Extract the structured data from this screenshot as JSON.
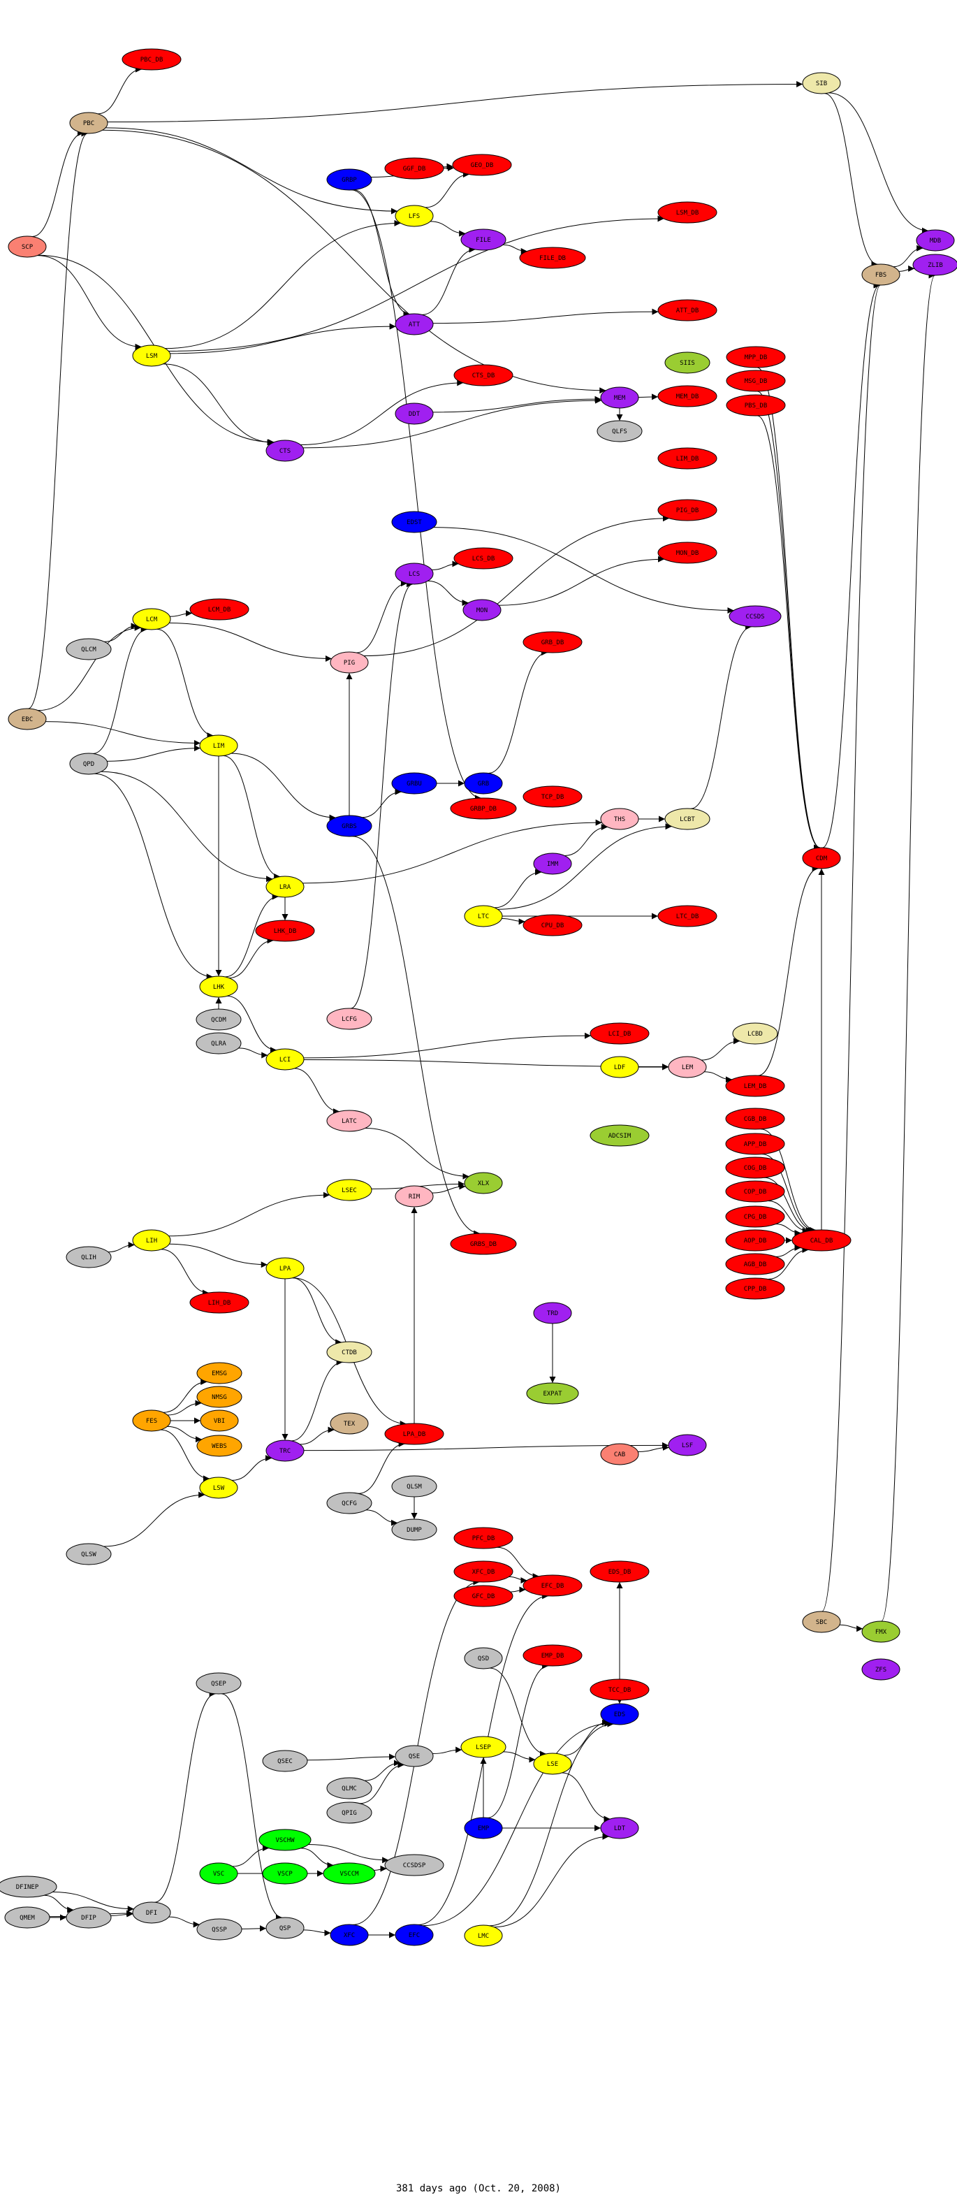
{
  "colors": {
    "red": "#ff0000",
    "purple": "#a020f0",
    "yellow": "#ffff00",
    "blue": "#0000ff",
    "gray": "#c0c0c0",
    "tan": "#d2b48c",
    "salmon": "#fa8072",
    "khaki": "#eee8aa",
    "pink": "#ffb6c1",
    "yellowgreen": "#9acd32",
    "orange": "#ffa500",
    "green": "#00ff00"
  },
  "nodes": [
    {
      "label": "PBC_DB",
      "color": "red"
    },
    {
      "label": "PBC",
      "color": "tan"
    },
    {
      "label": "SCP",
      "color": "salmon"
    },
    {
      "label": "GRBP",
      "color": "blue"
    },
    {
      "label": "GGF_DB",
      "color": "red"
    },
    {
      "label": "GEO_DB",
      "color": "red"
    },
    {
      "label": "LFS",
      "color": "yellow"
    },
    {
      "label": "FILE",
      "color": "purple"
    },
    {
      "label": "FILE_DB",
      "color": "red"
    },
    {
      "label": "LSM_DB",
      "color": "red"
    },
    {
      "label": "SIB",
      "color": "khaki"
    },
    {
      "label": "MDB",
      "color": "purple"
    },
    {
      "label": "ZLIB",
      "color": "purple"
    },
    {
      "label": "FBS",
      "color": "tan"
    },
    {
      "label": "ATT",
      "color": "purple"
    },
    {
      "label": "ATT_DB",
      "color": "red"
    },
    {
      "label": "SIIS",
      "color": "yellowgreen"
    },
    {
      "label": "MPP_DB",
      "color": "red"
    },
    {
      "label": "MSG_DB",
      "color": "red"
    },
    {
      "label": "PBS_DB",
      "color": "red"
    },
    {
      "label": "MEM",
      "color": "purple"
    },
    {
      "label": "MEM_DB",
      "color": "red"
    },
    {
      "label": "QLFS",
      "color": "gray"
    },
    {
      "label": "LIM_DB",
      "color": "red"
    },
    {
      "label": "LSM",
      "color": "yellow"
    },
    {
      "label": "CTS_DB",
      "color": "red"
    },
    {
      "label": "DDT",
      "color": "purple"
    },
    {
      "label": "CTS",
      "color": "purple"
    },
    {
      "label": "EDST",
      "color": "blue"
    },
    {
      "label": "PIG_DB",
      "color": "red"
    },
    {
      "label": "MON_DB",
      "color": "red"
    },
    {
      "label": "LCS_DB",
      "color": "red"
    },
    {
      "label": "LCS",
      "color": "purple"
    },
    {
      "label": "LCM",
      "color": "yellow"
    },
    {
      "label": "LCM_DB",
      "color": "red"
    },
    {
      "label": "MON",
      "color": "purple"
    },
    {
      "label": "QLCM",
      "color": "gray"
    },
    {
      "label": "PIG",
      "color": "pink"
    },
    {
      "label": "EBC",
      "color": "tan"
    },
    {
      "label": "LIM",
      "color": "yellow"
    },
    {
      "label": "QPD",
      "color": "gray"
    },
    {
      "label": "GRBU",
      "color": "blue"
    },
    {
      "label": "GRB",
      "color": "blue"
    },
    {
      "label": "GRBP_DB",
      "color": "red"
    },
    {
      "label": "GRBS",
      "color": "blue"
    },
    {
      "label": "LRA",
      "color": "yellow"
    },
    {
      "label": "LTC",
      "color": "yellow"
    },
    {
      "label": "LHK_DB",
      "color": "red"
    },
    {
      "label": "LHK",
      "color": "yellow"
    },
    {
      "label": "QCDM",
      "color": "gray"
    },
    {
      "label": "LCFG",
      "color": "pink"
    },
    {
      "label": "QLRA",
      "color": "gray"
    },
    {
      "label": "LCI",
      "color": "yellow"
    },
    {
      "label": "GRB_DB",
      "color": "red"
    },
    {
      "label": "CCSDS",
      "color": "purple"
    },
    {
      "label": "TCP_DB",
      "color": "red"
    },
    {
      "label": "THS",
      "color": "pink"
    },
    {
      "label": "LCBT",
      "color": "khaki"
    },
    {
      "label": "IMM",
      "color": "purple"
    },
    {
      "label": "CDM",
      "color": "red"
    },
    {
      "label": "CPU_DB",
      "color": "red"
    },
    {
      "label": "LTC_DB",
      "color": "red"
    },
    {
      "label": "LCI_DB",
      "color": "red"
    },
    {
      "label": "LCBD",
      "color": "khaki"
    },
    {
      "label": "LDF",
      "color": "yellow"
    },
    {
      "label": "LEM",
      "color": "pink"
    },
    {
      "label": "LEM_DB",
      "color": "red"
    },
    {
      "label": "CGB_DB",
      "color": "red"
    },
    {
      "label": "APP_DB",
      "color": "red"
    },
    {
      "label": "COG_DB",
      "color": "red"
    },
    {
      "label": "COP_DB",
      "color": "red"
    },
    {
      "label": "CPG_DB",
      "color": "red"
    },
    {
      "label": "AOP_DB",
      "color": "red"
    },
    {
      "label": "AGB_DB",
      "color": "red"
    },
    {
      "label": "CPP_DB",
      "color": "red"
    },
    {
      "label": "CAL_DB",
      "color": "red"
    },
    {
      "label": "ADCSIM",
      "color": "yellowgreen"
    },
    {
      "label": "XLX",
      "color": "yellowgreen"
    },
    {
      "label": "GRBS_DB",
      "color": "red"
    },
    {
      "label": "TRD",
      "color": "purple"
    },
    {
      "label": "EXPAT",
      "color": "yellowgreen"
    },
    {
      "label": "LSF",
      "color": "purple"
    },
    {
      "label": "CAB",
      "color": "salmon"
    },
    {
      "label": "PFC_DB",
      "color": "red"
    },
    {
      "label": "XFC_DB",
      "color": "red"
    },
    {
      "label": "GFC_DB",
      "color": "red"
    },
    {
      "label": "EFC_DB",
      "color": "red"
    },
    {
      "label": "EDS_DB",
      "color": "red"
    },
    {
      "label": "SBC",
      "color": "tan"
    },
    {
      "label": "FMX",
      "color": "yellowgreen"
    },
    {
      "label": "LATC",
      "color": "pink"
    },
    {
      "label": "LSEC",
      "color": "yellow"
    },
    {
      "label": "RIM",
      "color": "pink"
    },
    {
      "label": "LIH",
      "color": "yellow"
    },
    {
      "label": "QLIH",
      "color": "gray"
    },
    {
      "label": "LPA",
      "color": "yellow"
    },
    {
      "label": "LIH_DB",
      "color": "red"
    },
    {
      "label": "CTDB",
      "color": "khaki"
    },
    {
      "label": "EMSG",
      "color": "orange"
    },
    {
      "label": "NMSG",
      "color": "orange"
    },
    {
      "label": "FES",
      "color": "orange"
    },
    {
      "label": "VBI",
      "color": "orange"
    },
    {
      "label": "WEBS",
      "color": "orange"
    },
    {
      "label": "TEX",
      "color": "tan"
    },
    {
      "label": "TRC",
      "color": "purple"
    },
    {
      "label": "LPA_DB",
      "color": "red"
    },
    {
      "label": "LSW",
      "color": "yellow"
    },
    {
      "label": "QLSM",
      "color": "gray"
    },
    {
      "label": "QCFG",
      "color": "gray"
    },
    {
      "label": "DUMP",
      "color": "gray"
    },
    {
      "label": "QLSW",
      "color": "gray"
    },
    {
      "label": "QSD",
      "color": "gray"
    },
    {
      "label": "QSEP",
      "color": "gray"
    },
    {
      "label": "EMP_DB",
      "color": "red"
    },
    {
      "label": "TCC_DB",
      "color": "red"
    },
    {
      "label": "EDS",
      "color": "blue"
    },
    {
      "label": "LSEP",
      "color": "yellow"
    },
    {
      "label": "QSE",
      "color": "gray"
    },
    {
      "label": "QSEC",
      "color": "gray"
    },
    {
      "label": "LSE",
      "color": "yellow"
    },
    {
      "label": "QLMC",
      "color": "gray"
    },
    {
      "label": "QPIG",
      "color": "gray"
    },
    {
      "label": "EMP",
      "color": "blue"
    },
    {
      "label": "LDT",
      "color": "purple"
    },
    {
      "label": "VSCHW",
      "color": "green"
    },
    {
      "label": "CCSDSP",
      "color": "gray"
    },
    {
      "label": "VSC",
      "color": "green"
    },
    {
      "label": "VSCP",
      "color": "green"
    },
    {
      "label": "VSCCM",
      "color": "green"
    },
    {
      "label": "DFINEP",
      "color": "gray"
    },
    {
      "label": "QMEM",
      "color": "gray"
    },
    {
      "label": "DFIP",
      "color": "gray"
    },
    {
      "label": "DFI",
      "color": "gray"
    },
    {
      "label": "QSSP",
      "color": "gray"
    },
    {
      "label": "QSP",
      "color": "gray"
    },
    {
      "label": "XFC",
      "color": "blue"
    },
    {
      "label": "EFC",
      "color": "blue"
    },
    {
      "label": "LMC",
      "color": "yellow"
    },
    {
      "label": "ZFS",
      "color": "purple"
    }
  ],
  "edges": [
    [
      "PBC",
      "PBC_DB"
    ],
    [
      "SCP",
      "PBC"
    ],
    [
      "SCP",
      "LSM"
    ],
    [
      "SCP",
      "CTS"
    ],
    [
      "EBC",
      "PBC"
    ],
    [
      "EBC",
      "LCM"
    ],
    [
      "EBC",
      "LIM"
    ],
    [
      "PBC",
      "LFS"
    ],
    [
      "PBC",
      "MEM"
    ],
    [
      "PBC",
      "SIB"
    ],
    [
      "GGF_DB",
      "GEO_DB"
    ],
    [
      "GRBP",
      "GEO_DB"
    ],
    [
      "GRBP",
      "ATT"
    ],
    [
      "LFS",
      "FILE"
    ],
    [
      "LFS",
      "GEO_DB"
    ],
    [
      "FILE",
      "FILE_DB"
    ],
    [
      "ATT",
      "FILE"
    ],
    [
      "ATT",
      "ATT_DB"
    ],
    [
      "LSM",
      "ATT"
    ],
    [
      "LSM",
      "CTS"
    ],
    [
      "LSM",
      "LFS"
    ],
    [
      "LSM",
      "LSM_DB"
    ],
    [
      "MEM",
      "MEM_DB"
    ],
    [
      "MEM",
      "QLFS"
    ],
    [
      "DDT",
      "MEM"
    ],
    [
      "SIB",
      "MDB"
    ],
    [
      "SIB",
      "FBS"
    ],
    [
      "FBS",
      "MDB"
    ],
    [
      "FBS",
      "ZLIB"
    ],
    [
      "CDM",
      "FBS"
    ],
    [
      "SBC",
      "FBS"
    ],
    [
      "FMX",
      "ZLIB"
    ],
    [
      "SBC",
      "FMX"
    ],
    [
      "MPP_DB",
      "CDM"
    ],
    [
      "MSG_DB",
      "CDM"
    ],
    [
      "PBS_DB",
      "CDM"
    ],
    [
      "CAL_DB",
      "CDM"
    ],
    [
      "LEM_DB",
      "CDM"
    ],
    [
      "CTS",
      "CTS_DB"
    ],
    [
      "CTS",
      "MEM"
    ],
    [
      "LCM",
      "LCM_DB"
    ],
    [
      "LCM",
      "LIM"
    ],
    [
      "LCM",
      "PIG"
    ],
    [
      "QLCM",
      "LCM"
    ],
    [
      "QPD",
      "LIM"
    ],
    [
      "QPD",
      "LCM"
    ],
    [
      "QPD",
      "LRA"
    ],
    [
      "QPD",
      "LHK"
    ],
    [
      "LIM",
      "GRBS"
    ],
    [
      "LIM",
      "LRA"
    ],
    [
      "LIM",
      "LHK"
    ],
    [
      "GRBU",
      "GRB"
    ],
    [
      "GRBS",
      "GRBU"
    ],
    [
      "GRBS",
      "PIG"
    ],
    [
      "GRBS",
      "GRBS_DB"
    ],
    [
      "GRBP",
      "GRBP_DB"
    ],
    [
      "GRB",
      "GRB_DB"
    ],
    [
      "PIG",
      "LCS"
    ],
    [
      "PIG",
      "PIG_DB"
    ],
    [
      "LCS",
      "MON"
    ],
    [
      "LCS",
      "LCS_DB"
    ],
    [
      "MON",
      "MON_DB"
    ],
    [
      "LCFG",
      "LCS"
    ],
    [
      "THS",
      "LCBT"
    ],
    [
      "LCBT",
      "CCSDS"
    ],
    [
      "EDST",
      "CCSDS"
    ],
    [
      "IMM",
      "THS"
    ],
    [
      "LRA",
      "LHK_DB"
    ],
    [
      "LRA",
      "THS"
    ],
    [
      "LHK",
      "LRA"
    ],
    [
      "LHK",
      "LHK_DB"
    ],
    [
      "LHK",
      "LCI"
    ],
    [
      "QCDM",
      "LHK"
    ],
    [
      "QLRA",
      "LCI"
    ],
    [
      "LCI",
      "LCI_DB"
    ],
    [
      "LCI",
      "LATC"
    ],
    [
      "LCI",
      "LEM"
    ],
    [
      "LDF",
      "LEM"
    ],
    [
      "LEM",
      "LEM_DB"
    ],
    [
      "LEM",
      "LCBD"
    ],
    [
      "LTC",
      "LTC_DB"
    ],
    [
      "LTC",
      "CPU_DB"
    ],
    [
      "LTC",
      "IMM"
    ],
    [
      "LTC",
      "LCBT"
    ],
    [
      "CGB_DB",
      "CAL_DB"
    ],
    [
      "APP_DB",
      "CAL_DB"
    ],
    [
      "COG_DB",
      "CAL_DB"
    ],
    [
      "COP_DB",
      "CAL_DB"
    ],
    [
      "CPG_DB",
      "CAL_DB"
    ],
    [
      "AOP_DB",
      "CAL_DB"
    ],
    [
      "AGB_DB",
      "CAL_DB"
    ],
    [
      "CPP_DB",
      "CAL_DB"
    ],
    [
      "LATC",
      "XLX"
    ],
    [
      "RIM",
      "XLX"
    ],
    [
      "LSEC",
      "XLX"
    ],
    [
      "LIH",
      "LIH_DB"
    ],
    [
      "LIH",
      "LPA"
    ],
    [
      "LIH",
      "LSEC"
    ],
    [
      "QLIH",
      "LIH"
    ],
    [
      "LPA",
      "CTDB"
    ],
    [
      "LPA",
      "TRC"
    ],
    [
      "LPA",
      "LPA_DB"
    ],
    [
      "FES",
      "EMSG"
    ],
    [
      "FES",
      "NMSG"
    ],
    [
      "FES",
      "VBI"
    ],
    [
      "FES",
      "WEBS"
    ],
    [
      "FES",
      "LSW"
    ],
    [
      "TRC",
      "TEX"
    ],
    [
      "TRC",
      "CTDB"
    ],
    [
      "TRC",
      "LSF"
    ],
    [
      "LSW",
      "TRC"
    ],
    [
      "QLSW",
      "LSW"
    ],
    [
      "QCFG",
      "DUMP"
    ],
    [
      "QLSM",
      "DUMP"
    ],
    [
      "QCFG",
      "LPA_DB"
    ],
    [
      "LPA_DB",
      "RIM"
    ],
    [
      "TRD",
      "EXPAT"
    ],
    [
      "CAB",
      "LSF"
    ],
    [
      "XFC",
      "EFC"
    ],
    [
      "QSP",
      "XFC"
    ],
    [
      "QSSP",
      "QSP"
    ],
    [
      "DFI",
      "QSSP"
    ],
    [
      "DFIP",
      "DFI"
    ],
    [
      "QMEM",
      "DFIP"
    ],
    [
      "QMEM",
      "DFI"
    ],
    [
      "DFINEP",
      "DFIP"
    ],
    [
      "DFINEP",
      "DFI"
    ],
    [
      "DFI",
      "QSEP"
    ],
    [
      "QSEP",
      "QSP"
    ],
    [
      "QSEC",
      "QSE"
    ],
    [
      "QLMC",
      "QSE"
    ],
    [
      "QPIG",
      "QSE"
    ],
    [
      "VSC",
      "VSCHW"
    ],
    [
      "VSC",
      "VSCCM"
    ],
    [
      "VSCP",
      "VSCCM"
    ],
    [
      "VSCHW",
      "VSCCM"
    ],
    [
      "VSCCM",
      "CCSDSP"
    ],
    [
      "VSCHW",
      "CCSDSP"
    ],
    [
      "XFC",
      "XFC_DB"
    ],
    [
      "EFC",
      "EFC_DB"
    ],
    [
      "EDS",
      "EDS_DB"
    ],
    [
      "EFC",
      "EDS"
    ],
    [
      "QSE",
      "LSEP"
    ],
    [
      "QSD",
      "LSE"
    ],
    [
      "LSEP",
      "LSE"
    ],
    [
      "LSE",
      "EDS"
    ],
    [
      "LSE",
      "LDT"
    ],
    [
      "EMP",
      "LDT"
    ],
    [
      "EMP",
      "EMP_DB"
    ],
    [
      "EMP",
      "LSEP"
    ],
    [
      "LMC",
      "LDT"
    ],
    [
      "LMC",
      "EDS"
    ],
    [
      "TCC_DB",
      "EDS"
    ],
    [
      "PFC_DB",
      "EFC_DB"
    ],
    [
      "XFC_DB",
      "EFC_DB"
    ],
    [
      "GFC_DB",
      "EFC_DB"
    ]
  ],
  "footer": "381 days ago (Oct. 20, 2008)"
}
